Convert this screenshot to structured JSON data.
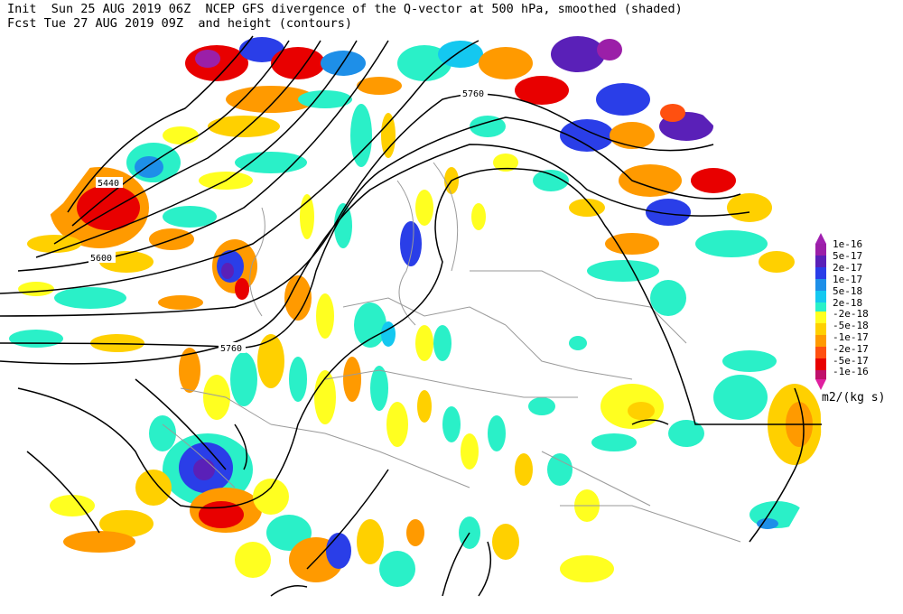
{
  "header": {
    "line1": "Init  Sun 25 AUG 2019 06Z  NCEP GFS divergence of the Q-vector at 500 hPa, smoothed (shaded)",
    "line2": "Fcst Tue 27 AUG 2019 09Z  and height (contours)"
  },
  "colorbar": {
    "divergence": [
      {
        "label": "1e-16",
        "color": "#9b1fa8"
      },
      {
        "label": "5e-17",
        "color": "#5a20b8"
      },
      {
        "label": "2e-17",
        "color": "#2a3ee8"
      },
      {
        "label": "1e-17",
        "color": "#1e8fe8"
      },
      {
        "label": "5e-18",
        "color": "#14c8f0"
      },
      {
        "label": "2e-18",
        "color": "#2af0c8"
      }
    ],
    "convergence": [
      {
        "label": "-2e-18",
        "color": "#ffff20"
      },
      {
        "label": "-5e-18",
        "color": "#ffd000"
      },
      {
        "label": "-1e-17",
        "color": "#ff9a00"
      },
      {
        "label": "-2e-17",
        "color": "#ff5010"
      },
      {
        "label": "-5e-17",
        "color": "#e80000"
      },
      {
        "label": "-1e-16",
        "color": "#c0106a"
      }
    ],
    "top_arrow_color": "#a020b0",
    "bottom_arrow_color": "#e020a0"
  },
  "units": "m2/(kg s)",
  "contour_labels": {
    "a": "5440",
    "b": "5600",
    "c": "5760",
    "d": "5760"
  },
  "colors": {
    "background": "#ffffff",
    "contour": "#000000",
    "borders": "#9a9a9a"
  }
}
